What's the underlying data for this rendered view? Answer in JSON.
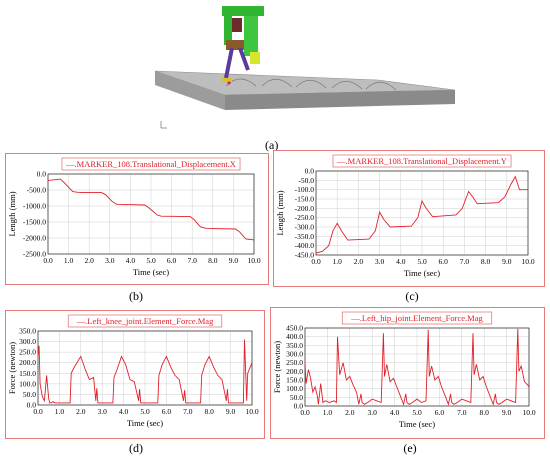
{
  "captions": {
    "a": "(a)",
    "b": "(b)",
    "c": "(c)",
    "d": "(d)",
    "e": "(e)"
  },
  "colors": {
    "line": "#e0202a",
    "frame": "#e57a7a",
    "grid": "#cfcfcf",
    "ground": "#b8b8b8"
  },
  "chart_data": [
    {
      "id": "b",
      "type": "line",
      "legend": "—.MARKER_108.Translational_Displacement.X",
      "xlabel": "Time (sec)",
      "ylabel": "Length (mm)",
      "xlim": [
        0,
        10
      ],
      "ylim": [
        -2500,
        0
      ],
      "xticks": [
        "0.0",
        "1.0",
        "2.0",
        "3.0",
        "4.0",
        "5.0",
        "6.0",
        "7.0",
        "8.0",
        "9.0",
        "10.0"
      ],
      "yticks": [
        "0.0",
        "-500.0",
        "-1000.0",
        "-1500.0",
        "-2000.0",
        "-2500.0"
      ],
      "grid": true,
      "series": [
        {
          "x": [
            0,
            0.3,
            0.6,
            0.8,
            1.2,
            1.4,
            1.7,
            2.6,
            2.8,
            3.1,
            3.3,
            3.4,
            4.7,
            4.9,
            5.3,
            5.5,
            6.9,
            7.1,
            7.4,
            7.7,
            9.1,
            9.3,
            9.6,
            10
          ],
          "y": [
            -200,
            -180,
            -160,
            -280,
            -550,
            -570,
            -580,
            -580,
            -650,
            -850,
            -940,
            -950,
            -970,
            -1060,
            -1280,
            -1320,
            -1330,
            -1430,
            -1650,
            -1700,
            -1720,
            -1810,
            -2030,
            -2060
          ]
        }
      ]
    },
    {
      "id": "c",
      "type": "line",
      "legend": "—.MARKER_108.Translational_Displacement.Y",
      "xlabel": "Time (sec)",
      "ylabel": "Length (mm)",
      "xlim": [
        0,
        10
      ],
      "ylim": [
        -450,
        0
      ],
      "xticks": [
        "0.0",
        "1.0",
        "2.0",
        "3.0",
        "4.0",
        "5.0",
        "6.0",
        "7.0",
        "8.0",
        "9.0",
        "10.0"
      ],
      "yticks": [
        "0.0",
        "-50.0",
        "-100.0",
        "-150.0",
        "-200.0",
        "-250.0",
        "-300.0",
        "-350.0",
        "-400.0",
        "-450.0"
      ],
      "grid": true,
      "series": [
        {
          "x": [
            0,
            0.3,
            0.6,
            0.8,
            1.0,
            1.2,
            1.5,
            2.5,
            2.8,
            3.0,
            3.2,
            3.5,
            4.5,
            4.8,
            5.0,
            5.2,
            5.5,
            6.6,
            6.9,
            7.2,
            7.4,
            7.6,
            8.6,
            8.9,
            9.2,
            9.4,
            9.6,
            10
          ],
          "y": [
            -440,
            -430,
            -400,
            -320,
            -280,
            -320,
            -370,
            -365,
            -320,
            -220,
            -260,
            -300,
            -295,
            -250,
            -160,
            -200,
            -245,
            -235,
            -200,
            -110,
            -140,
            -175,
            -170,
            -140,
            -70,
            -30,
            -100,
            -100
          ]
        }
      ]
    },
    {
      "id": "d",
      "type": "line",
      "legend": "—.Left_knee_joint.Element_Force.Mag",
      "xlabel": "Time (sec)",
      "ylabel": "Force (newton)",
      "xlim": [
        0,
        10
      ],
      "ylim": [
        0,
        350
      ],
      "xticks": [
        "0.0",
        "1.0",
        "2.0",
        "3.0",
        "4.0",
        "5.0",
        "6.0",
        "7.0",
        "8.0",
        "9.0",
        "10.0"
      ],
      "yticks": [
        "350.0",
        "300.0",
        "250.0",
        "200.0",
        "150.0",
        "100.0",
        "50.0",
        "0.0"
      ],
      "grid": true,
      "series": [
        {
          "x": [
            0,
            0.05,
            0.1,
            0.2,
            0.3,
            0.4,
            0.5,
            0.55,
            0.6,
            0.7,
            0.8,
            1.0,
            1.3,
            1.5,
            1.55,
            1.7,
            2.0,
            2.2,
            2.4,
            2.6,
            2.7,
            2.75,
            2.8,
            3.0,
            3.2,
            3.5,
            3.55,
            3.7,
            3.9,
            4.1,
            4.3,
            4.5,
            4.7,
            4.75,
            4.8,
            5.0,
            5.3,
            5.6,
            5.65,
            5.8,
            6.0,
            6.2,
            6.4,
            6.6,
            6.8,
            6.85,
            6.9,
            7.1,
            7.4,
            7.6,
            7.65,
            7.8,
            8.0,
            8.2,
            8.4,
            8.6,
            8.8,
            8.85,
            8.9,
            9.1,
            9.4,
            9.6,
            9.65,
            9.75,
            9.8,
            10
          ],
          "y": [
            230,
            280,
            100,
            40,
            20,
            140,
            30,
            10,
            10,
            15,
            10,
            10,
            10,
            10,
            150,
            180,
            230,
            170,
            120,
            130,
            20,
            80,
            10,
            10,
            10,
            10,
            130,
            170,
            230,
            190,
            120,
            110,
            20,
            75,
            10,
            10,
            10,
            10,
            140,
            190,
            230,
            180,
            140,
            120,
            20,
            70,
            10,
            10,
            10,
            10,
            140,
            190,
            230,
            180,
            140,
            120,
            20,
            75,
            10,
            10,
            10,
            10,
            310,
            20,
            150,
            200
          ]
        }
      ]
    },
    {
      "id": "e",
      "type": "line",
      "legend": "—.Left_hip_joint.Element_Force.Mag",
      "xlabel": "Time (sec)",
      "ylabel": "Force (newton)",
      "xlim": [
        0,
        10
      ],
      "ylim": [
        0,
        450
      ],
      "xticks": [
        "0.0",
        "1.0",
        "2.0",
        "3.0",
        "4.0",
        "5.0",
        "6.0",
        "7.0",
        "8.0",
        "9.0",
        "10.0"
      ],
      "yticks": [
        "450.0",
        "400.0",
        "350.0",
        "300.0",
        "250.0",
        "200.0",
        "150.0",
        "100.0",
        "50.0",
        "0.0"
      ],
      "grid": true,
      "series": [
        {
          "x": [
            0,
            0.05,
            0.15,
            0.25,
            0.35,
            0.45,
            0.55,
            0.6,
            0.7,
            0.8,
            0.9,
            1.1,
            1.3,
            1.4,
            1.45,
            1.55,
            1.7,
            1.85,
            2.0,
            2.15,
            2.3,
            2.4,
            2.5,
            2.55,
            2.65,
            2.8,
            3.0,
            3.2,
            3.4,
            3.5,
            3.55,
            3.65,
            3.8,
            3.95,
            4.1,
            4.25,
            4.4,
            4.5,
            4.55,
            4.65,
            4.8,
            5.0,
            5.2,
            5.4,
            5.5,
            5.55,
            5.65,
            5.8,
            5.95,
            6.1,
            6.25,
            6.4,
            6.5,
            6.55,
            6.65,
            6.8,
            7.0,
            7.2,
            7.4,
            7.5,
            7.55,
            7.65,
            7.8,
            7.95,
            8.1,
            8.25,
            8.4,
            8.5,
            8.55,
            8.65,
            8.8,
            9.0,
            9.2,
            9.4,
            9.5,
            9.55,
            9.65,
            9.8,
            9.95,
            10
          ],
          "y": [
            250,
            130,
            210,
            160,
            80,
            110,
            60,
            10,
            130,
            20,
            30,
            20,
            30,
            20,
            400,
            180,
            250,
            150,
            170,
            120,
            80,
            10,
            70,
            20,
            10,
            20,
            40,
            30,
            20,
            420,
            170,
            240,
            140,
            160,
            110,
            60,
            10,
            70,
            20,
            10,
            20,
            40,
            20,
            30,
            440,
            170,
            230,
            150,
            170,
            110,
            60,
            10,
            70,
            20,
            10,
            20,
            40,
            30,
            20,
            420,
            180,
            240,
            150,
            170,
            110,
            60,
            10,
            70,
            20,
            10,
            20,
            40,
            30,
            20,
            445,
            200,
            230,
            140,
            120,
            110
          ]
        }
      ]
    }
  ]
}
